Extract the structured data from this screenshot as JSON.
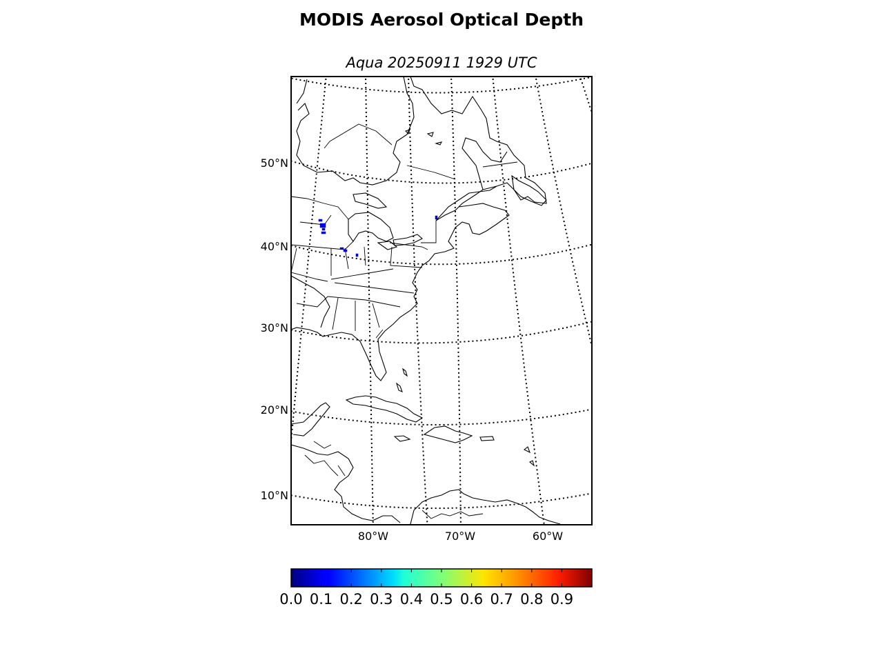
{
  "title": "MODIS Aerosol Optical Depth",
  "subtitle": "Aqua 20250911 1929 UTC",
  "map": {
    "lat_labels": [
      "50°N",
      "40°N",
      "30°N",
      "20°N",
      "10°N"
    ],
    "lon_labels": [
      "80°W",
      "70°W",
      "60°W"
    ],
    "graticule_style": "dotted",
    "aod_pixel_color": "#0000ee",
    "aod_observed_regions": [
      "Wisconsin",
      "Illinois/Indiana",
      "Quebec (St. Lawrence)"
    ]
  },
  "colorbar": {
    "tick_labels": [
      "0.0",
      "0.1",
      "0.2",
      "0.3",
      "0.4",
      "0.5",
      "0.6",
      "0.7",
      "0.8",
      "0.9"
    ],
    "colormap": "jet",
    "range": [
      0.0,
      1.0
    ]
  }
}
